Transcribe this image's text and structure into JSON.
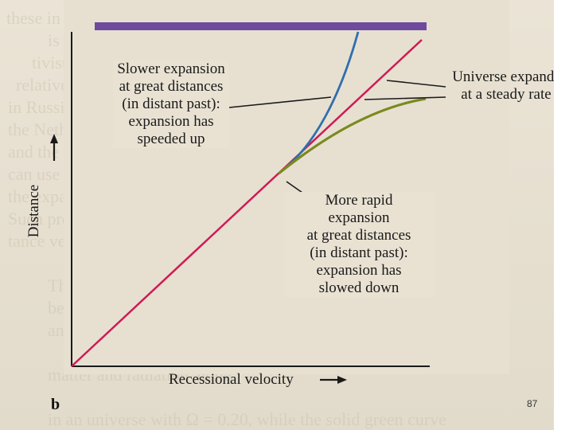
{
  "figure": {
    "panel_label": "b",
    "page_number": "87",
    "x_axis_label": "Recessional velocity",
    "y_axis_label": "Distance",
    "top_bar_color": "#6f4a9e",
    "annotations": {
      "steady": "Universe expands\nat a steady rate",
      "speeded": "Slower expansion\nat great distances\n(in distant past):\nexpansion has\nspeeded up",
      "slowed": "More rapid\nexpansion\nat great distances\n(in distant past):\nexpansion has\nslowed down"
    },
    "curves": [
      {
        "name": "steady-expansion-line",
        "color": "#d01a55"
      },
      {
        "name": "speeded-up-curve",
        "color": "#2f6fae"
      },
      {
        "name": "slowed-down-curve",
        "color": "#7a8a1e"
      }
    ]
  }
}
